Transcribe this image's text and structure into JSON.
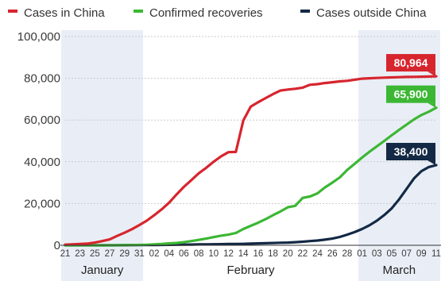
{
  "chart_data": {
    "type": "line",
    "title": "",
    "xlabel": "",
    "ylabel": "",
    "ylim": [
      0,
      100000
    ],
    "y_ticks": [
      "0",
      "20,000",
      "40,000",
      "60,000",
      "80,000",
      "100,000"
    ],
    "y_tick_values": [
      0,
      20000,
      40000,
      60000,
      80000,
      100000
    ],
    "grid": "horizontal",
    "legend_position": "top",
    "x": [
      "21",
      "22",
      "23",
      "24",
      "25",
      "26",
      "27",
      "28",
      "29",
      "30",
      "31",
      "01",
      "02",
      "03",
      "04",
      "05",
      "06",
      "07",
      "08",
      "09",
      "10",
      "11",
      "12",
      "13",
      "14",
      "15",
      "16",
      "17",
      "18",
      "19",
      "20",
      "21",
      "22",
      "23",
      "24",
      "25",
      "26",
      "27",
      "28",
      "29",
      "01",
      "02",
      "03",
      "04",
      "05",
      "06",
      "07",
      "08",
      "09",
      "10",
      "11"
    ],
    "x_tick_labels": [
      "21",
      "23",
      "25",
      "27",
      "29",
      "31",
      "02",
      "04",
      "06",
      "08",
      "10",
      "12",
      "14",
      "16",
      "18",
      "20",
      "22",
      "24",
      "26",
      "28",
      "01",
      "03",
      "05",
      "07",
      "09",
      "11"
    ],
    "months": [
      {
        "label": "January",
        "from": 0,
        "to": 10,
        "shaded": true
      },
      {
        "label": "February",
        "from": 11,
        "to": 39,
        "shaded": false
      },
      {
        "label": "March",
        "from": 40,
        "to": 50,
        "shaded": true
      }
    ],
    "series": [
      {
        "name": "Cases in China",
        "color": "#d7252e",
        "values": [
          300,
          450,
          600,
          800,
          1300,
          2000,
          2800,
          4500,
          6000,
          7700,
          9700,
          11800,
          14400,
          17200,
          20400,
          24300,
          28000,
          31200,
          34500,
          37100,
          40000,
          42600,
          44600,
          44700,
          59800,
          66400,
          68500,
          70500,
          72400,
          74100,
          74600,
          75000,
          75500,
          76900,
          77200,
          77700,
          78100,
          78500,
          78800,
          79300,
          79800,
          80000,
          80150,
          80300,
          80400,
          80550,
          80650,
          80700,
          80750,
          80850,
          80964
        ],
        "callout": "80,964"
      },
      {
        "name": "Confirmed recoveries",
        "color": "#3cb734",
        "values": [
          0,
          0,
          0,
          0,
          0,
          0,
          0,
          50,
          100,
          130,
          200,
          250,
          450,
          600,
          900,
          1100,
          1500,
          2000,
          2600,
          3200,
          3900,
          4600,
          5100,
          5900,
          7800,
          9300,
          10800,
          12500,
          14400,
          16200,
          18200,
          18900,
          22700,
          23400,
          24900,
          27700,
          30000,
          32500,
          36100,
          39000,
          42000,
          44800,
          47400,
          50000,
          52700,
          55300,
          57800,
          60300,
          62400,
          64000,
          65900
        ],
        "callout": "65,900"
      },
      {
        "name": "Cases outside China",
        "color": "#132945",
        "values": [
          0,
          0,
          0,
          0,
          0,
          0,
          0,
          0,
          50,
          80,
          130,
          150,
          170,
          190,
          220,
          260,
          300,
          350,
          400,
          450,
          500,
          550,
          600,
          650,
          700,
          800,
          900,
          1000,
          1100,
          1200,
          1300,
          1500,
          1700,
          2000,
          2300,
          2700,
          3200,
          4000,
          5100,
          6300,
          7800,
          9600,
          11800,
          14500,
          17700,
          22000,
          27000,
          32000,
          35500,
          37500,
          38400
        ],
        "callout": "38,400"
      }
    ]
  }
}
